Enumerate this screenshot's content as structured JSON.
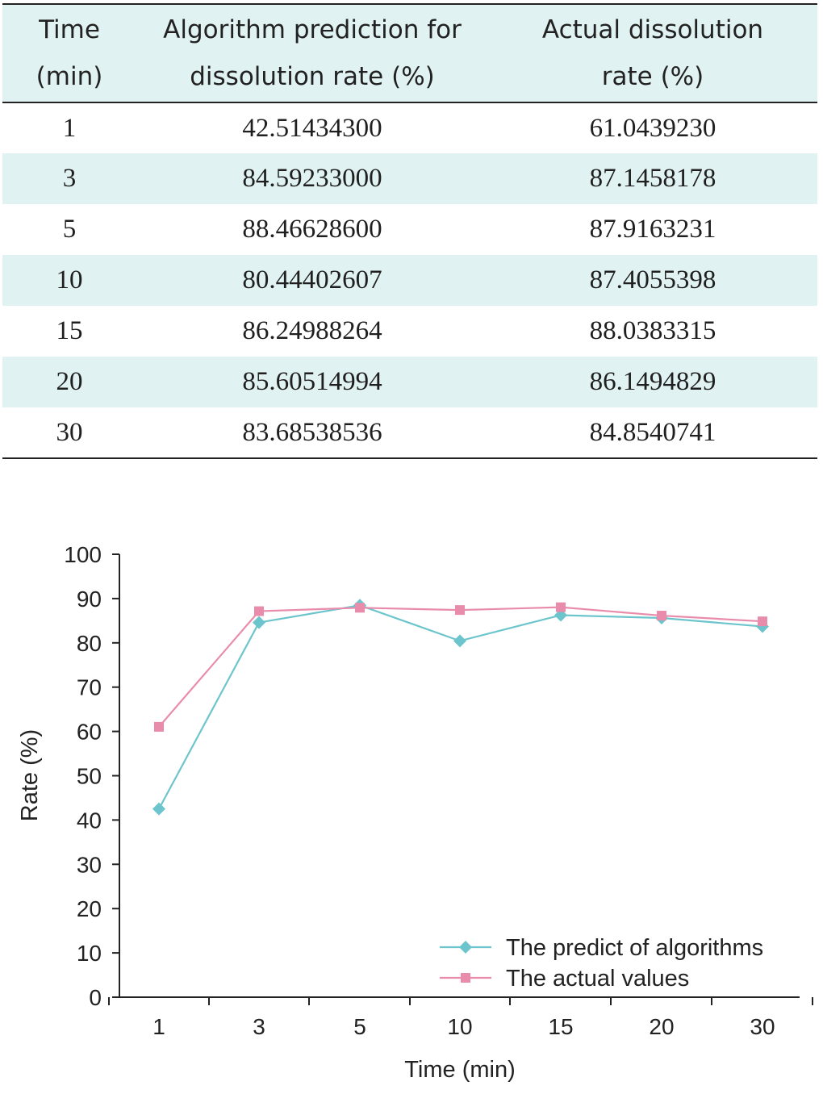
{
  "table": {
    "headers": {
      "time_line1": "Time",
      "time_line2": "(min)",
      "pred_line1": "Algorithm prediction for",
      "pred_line2": "dissolution rate (%)",
      "act_line1": "Actual dissolution",
      "act_line2": "rate (%)"
    },
    "rows": [
      {
        "time": "1",
        "pred": "42.51434300",
        "act": "61.0439230"
      },
      {
        "time": "3",
        "pred": "84.59233000",
        "act": "87.1458178"
      },
      {
        "time": "5",
        "pred": "88.46628600",
        "act": "87.9163231"
      },
      {
        "time": "10",
        "pred": "80.44402607",
        "act": "87.4055398"
      },
      {
        "time": "15",
        "pred": "86.24988264",
        "act": "88.0383315"
      },
      {
        "time": "20",
        "pred": "85.60514994",
        "act": "86.1494829"
      },
      {
        "time": "30",
        "pred": "83.68538536",
        "act": "84.8540741"
      }
    ],
    "header_bg": "#e0f3f2"
  },
  "chart_data": {
    "type": "line",
    "categories": [
      "1",
      "3",
      "5",
      "10",
      "15",
      "20",
      "30"
    ],
    "series": [
      {
        "name": "The predict of algorithms",
        "values": [
          42.51,
          84.59,
          88.47,
          80.44,
          86.25,
          85.61,
          83.69
        ],
        "color": "#6cc5cc",
        "marker": "diamond"
      },
      {
        "name": "The actual values",
        "values": [
          61.04,
          87.15,
          87.92,
          87.41,
          88.04,
          86.15,
          84.85
        ],
        "color": "#e98cab",
        "marker": "square"
      }
    ],
    "xlabel": "Time (min)",
    "ylabel": "Rate (%)",
    "ylim": [
      0,
      100
    ],
    "yticks": [
      "0",
      "10",
      "20",
      "30",
      "40",
      "50",
      "60",
      "70",
      "80",
      "90",
      "100"
    ],
    "grid": false,
    "legend_position": "bottom-right"
  }
}
